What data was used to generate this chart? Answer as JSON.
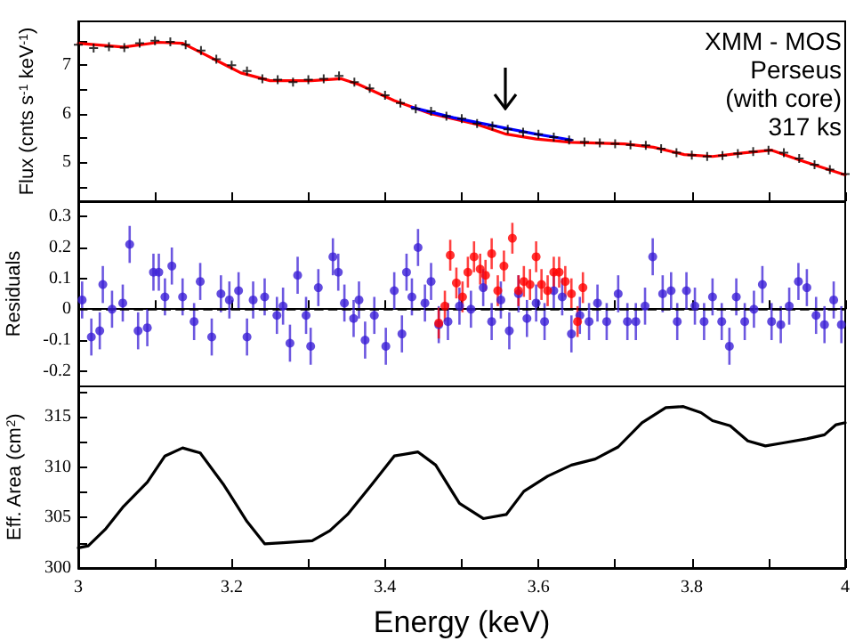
{
  "chart_data": [
    {
      "type": "line",
      "ylabel": "Flux (cnts s$^{-1}$ keV$^{-1}$)",
      "xlim": [
        3,
        4
      ],
      "xticks": [
        3,
        {
          "value": 3.1,
          "label": null
        },
        3.2,
        {
          "value": 3.3,
          "label": null
        },
        3.4,
        {
          "value": 3.5,
          "label": null
        },
        3.6,
        {
          "value": 3.7,
          "label": null
        },
        3.8,
        {
          "value": 3.9,
          "label": null
        },
        4
      ],
      "ylim": [
        4.2,
        7.9
      ],
      "yticks": [
        {
          "value": 4.5,
          "label": null
        },
        5,
        {
          "value": 5.5,
          "label": null
        },
        6,
        {
          "value": 6.5,
          "label": null
        },
        7,
        {
          "value": 7.5,
          "label": null
        }
      ],
      "tick_labels": "y",
      "annotations": [
        "XMM - MOS",
        "Perseus",
        "(with core)",
        "317 ks"
      ],
      "series": [
        {
          "type": "scatter",
          "marker": "cross",
          "color": "#000000",
          "x": [
            3.0,
            3.02,
            3.04,
            3.06,
            3.08,
            3.1,
            3.12,
            3.14,
            3.16,
            3.18,
            3.2,
            3.22,
            3.24,
            3.26,
            3.28,
            3.3,
            3.32,
            3.34,
            3.36,
            3.38,
            3.4,
            3.42,
            3.44,
            3.46,
            3.48,
            3.5,
            3.52,
            3.54,
            3.56,
            3.58,
            3.6,
            3.62,
            3.64,
            3.66,
            3.68,
            3.7,
            3.72,
            3.74,
            3.76,
            3.78,
            3.8,
            3.82,
            3.84,
            3.86,
            3.88,
            3.9,
            3.92,
            3.94,
            3.96,
            3.98,
            4.0
          ],
          "values": [
            7.42,
            7.35,
            7.38,
            7.36,
            7.45,
            7.5,
            7.48,
            7.42,
            7.3,
            7.12,
            7.0,
            6.88,
            6.72,
            6.7,
            6.65,
            6.7,
            6.72,
            6.78,
            6.65,
            6.52,
            6.38,
            6.22,
            6.1,
            6.05,
            5.95,
            5.9,
            5.8,
            5.75,
            5.68,
            5.62,
            5.58,
            5.52,
            5.46,
            5.42,
            5.4,
            5.38,
            5.36,
            5.35,
            5.28,
            5.2,
            5.15,
            5.12,
            5.14,
            5.18,
            5.22,
            5.25,
            5.2,
            5.08,
            4.95,
            4.85,
            4.76
          ]
        },
        {
          "marker": "none",
          "color": "#ff0000",
          "x": [
            3.0,
            3.059,
            3.105,
            3.136,
            3.166,
            3.212,
            3.25,
            3.304,
            3.343,
            3.366,
            3.412,
            3.458,
            3.52,
            3.558,
            3.597,
            3.643,
            3.712,
            3.75,
            3.79,
            3.827,
            3.866,
            3.904,
            3.942,
            4.0
          ],
          "values": [
            7.45,
            7.37,
            7.47,
            7.45,
            7.21,
            6.84,
            6.68,
            6.68,
            6.72,
            6.6,
            6.27,
            6.01,
            5.78,
            5.58,
            5.48,
            5.41,
            5.38,
            5.31,
            5.16,
            5.12,
            5.19,
            5.25,
            5.04,
            4.74
          ]
        },
        {
          "marker": "none",
          "color": "#0000ff",
          "x": [
            3.435,
            3.489,
            3.558,
            3.597,
            3.643
          ],
          "values": [
            6.13,
            5.92,
            5.7,
            5.58,
            5.46
          ]
        }
      ]
    },
    {
      "type": "scatter",
      "ylabel": "Residuals",
      "xlim": [
        3,
        4
      ],
      "xticks": [
        3,
        {
          "value": 3.1,
          "label": null
        },
        3.2,
        {
          "value": 3.3,
          "label": null
        },
        3.4,
        {
          "value": 3.5,
          "label": null
        },
        3.6,
        {
          "value": 3.7,
          "label": null
        },
        3.8,
        {
          "value": 3.9,
          "label": null
        },
        4
      ],
      "ylim": [
        -0.25,
        0.35
      ],
      "yticks": [
        {
          "value": -0.2,
          "label": "-0.2"
        },
        {
          "value": -0.1,
          "label": "-0.1"
        },
        0,
        0.1,
        0.2,
        0.3
      ],
      "tick_labels": "y",
      "marker": "circle",
      "ref_lines": [
        {
          "axis": "y",
          "value": 0,
          "color": "#000000",
          "line_style": "dashed"
        }
      ],
      "series": [
        {
          "color": "#3b1fd6",
          "x": [
            3.005,
            3.017,
            3.028,
            3.032,
            3.044,
            3.058,
            3.067,
            3.078,
            3.09,
            3.098,
            3.105,
            3.113,
            3.122,
            3.136,
            3.151,
            3.159,
            3.174,
            3.186,
            3.197,
            3.209,
            3.22,
            3.228,
            3.243,
            3.259,
            3.267,
            3.276,
            3.286,
            3.297,
            3.303,
            3.313,
            3.332,
            3.339,
            3.347,
            3.359,
            3.366,
            3.374,
            3.386,
            3.401,
            3.412,
            3.422,
            3.428,
            3.435,
            3.443,
            3.452,
            3.46,
            3.47,
            3.482,
            3.497,
            3.512,
            3.528,
            3.539,
            3.551,
            3.562,
            3.574,
            3.585,
            3.597,
            3.608,
            3.62,
            3.631,
            3.643,
            3.654,
            3.666,
            3.677,
            3.689,
            3.704,
            3.716,
            3.727,
            3.739,
            3.749,
            3.762,
            3.773,
            3.781,
            3.793,
            3.804,
            3.816,
            3.827,
            3.839,
            3.849,
            3.858,
            3.869,
            3.881,
            3.892,
            3.904,
            3.916,
            3.927,
            3.939,
            3.95,
            3.962,
            3.973,
            3.985,
            3.995
          ],
          "values": [
            0.03,
            -0.09,
            -0.07,
            0.08,
            0.0,
            0.02,
            0.21,
            -0.07,
            -0.06,
            0.12,
            0.12,
            0.04,
            0.14,
            0.04,
            -0.04,
            0.09,
            -0.09,
            0.05,
            0.03,
            0.06,
            -0.09,
            0.03,
            0.04,
            -0.02,
            0.01,
            -0.11,
            0.11,
            -0.02,
            -0.12,
            0.07,
            0.17,
            0.12,
            0.02,
            -0.03,
            0.03,
            -0.1,
            -0.02,
            -0.12,
            0.06,
            -0.08,
            0.12,
            0.04,
            0.2,
            0.02,
            0.09,
            -0.05,
            -0.04,
            0.01,
            0.0,
            0.07,
            -0.04,
            0.03,
            -0.07,
            0.05,
            -0.03,
            0.02,
            -0.04,
            0.06,
            0.04,
            -0.08,
            -0.02,
            -0.04,
            0.02,
            -0.04,
            0.05,
            -0.04,
            -0.04,
            0.01,
            0.17,
            0.05,
            0.06,
            -0.04,
            0.06,
            0.01,
            -0.04,
            0.04,
            -0.04,
            -0.12,
            0.04,
            -0.04,
            0.0,
            0.08,
            -0.04,
            -0.05,
            0.01,
            0.09,
            0.07,
            -0.02,
            -0.05,
            0.03,
            -0.05
          ],
          "errors": [
            0.06,
            0.06,
            0.06,
            0.06,
            0.06,
            0.06,
            0.06,
            0.06,
            0.06,
            0.06,
            0.06,
            0.06,
            0.06,
            0.06,
            0.06,
            0.06,
            0.06,
            0.06,
            0.06,
            0.06,
            0.06,
            0.06,
            0.06,
            0.06,
            0.06,
            0.06,
            0.06,
            0.06,
            0.06,
            0.06,
            0.06,
            0.06,
            0.06,
            0.06,
            0.06,
            0.06,
            0.06,
            0.06,
            0.06,
            0.06,
            0.06,
            0.06,
            0.06,
            0.06,
            0.06,
            0.06,
            0.06,
            0.06,
            0.06,
            0.06,
            0.06,
            0.06,
            0.06,
            0.06,
            0.06,
            0.06,
            0.06,
            0.06,
            0.06,
            0.06,
            0.06,
            0.06,
            0.06,
            0.06,
            0.06,
            0.06,
            0.06,
            0.06,
            0.06,
            0.06,
            0.06,
            0.06,
            0.06,
            0.06,
            0.06,
            0.06,
            0.06,
            0.06,
            0.06,
            0.06,
            0.06,
            0.06,
            0.06,
            0.06,
            0.06,
            0.06,
            0.06,
            0.06,
            0.06,
            0.06,
            0.06
          ]
        },
        {
          "color": "#ff0000",
          "x": [
            3.47,
            3.478,
            3.485,
            3.493,
            3.501,
            3.508,
            3.516,
            3.524,
            3.531,
            3.539,
            3.547,
            3.555,
            3.566,
            3.574,
            3.581,
            3.589,
            3.597,
            3.604,
            3.612,
            3.62,
            3.627,
            3.635,
            3.643,
            3.651,
            3.658
          ],
          "values": [
            -0.045,
            0.01,
            0.175,
            0.085,
            0.04,
            0.12,
            0.17,
            0.13,
            0.11,
            0.18,
            0.06,
            0.14,
            0.23,
            0.06,
            0.09,
            0.08,
            0.17,
            0.08,
            0.06,
            0.12,
            0.12,
            0.09,
            0.05,
            -0.04,
            0.07
          ],
          "errors": [
            0.05,
            0.05,
            0.05,
            0.05,
            0.05,
            0.05,
            0.05,
            0.05,
            0.05,
            0.05,
            0.05,
            0.05,
            0.05,
            0.05,
            0.05,
            0.05,
            0.05,
            0.05,
            0.05,
            0.05,
            0.05,
            0.05,
            0.05,
            0.05,
            0.05
          ]
        }
      ]
    },
    {
      "type": "line",
      "xlabel": "Energy (keV)",
      "ylabel": "Eff. Area (cm$^{2}$)",
      "xlim": [
        3,
        4
      ],
      "xticks": [
        3,
        {
          "value": 3.1,
          "label": null
        },
        3.2,
        {
          "value": 3.3,
          "label": null
        },
        3.4,
        {
          "value": 3.5,
          "label": null
        },
        3.6,
        {
          "value": 3.7,
          "label": null
        },
        3.8,
        {
          "value": 3.9,
          "label": null
        },
        4
      ],
      "ylim": [
        300,
        318
      ],
      "yticks": [
        300,
        {
          "value": 302.5,
          "label": null
        },
        305,
        {
          "value": 307.5,
          "label": null
        },
        310,
        {
          "value": 312.5,
          "label": null
        },
        315,
        {
          "value": 317.5,
          "label": null
        }
      ],
      "marker": "none",
      "series": [
        {
          "color": "#000000",
          "x": [
            3.0,
            3.013,
            3.036,
            3.059,
            3.09,
            3.113,
            3.136,
            3.159,
            3.19,
            3.22,
            3.243,
            3.267,
            3.305,
            3.328,
            3.351,
            3.382,
            3.412,
            3.443,
            3.466,
            3.497,
            3.528,
            3.558,
            3.581,
            3.612,
            3.643,
            3.674,
            3.704,
            3.735,
            3.766,
            3.789,
            3.812,
            3.827,
            3.85,
            3.873,
            3.896,
            3.919,
            3.95,
            3.973,
            3.988,
            4.0
          ],
          "values": [
            302,
            302.2,
            303.9,
            306.1,
            308.5,
            311.1,
            311.9,
            311.4,
            308.2,
            304.6,
            302.4,
            302.5,
            302.7,
            303.7,
            305.3,
            308.2,
            311.1,
            311.5,
            310.2,
            306.4,
            304.9,
            305.3,
            307.6,
            309.1,
            310.2,
            310.8,
            312.0,
            314.4,
            315.9,
            316.0,
            315.4,
            314.6,
            314.1,
            312.6,
            312.1,
            312.4,
            312.8,
            313.2,
            314.2,
            314.4
          ]
        }
      ]
    }
  ]
}
